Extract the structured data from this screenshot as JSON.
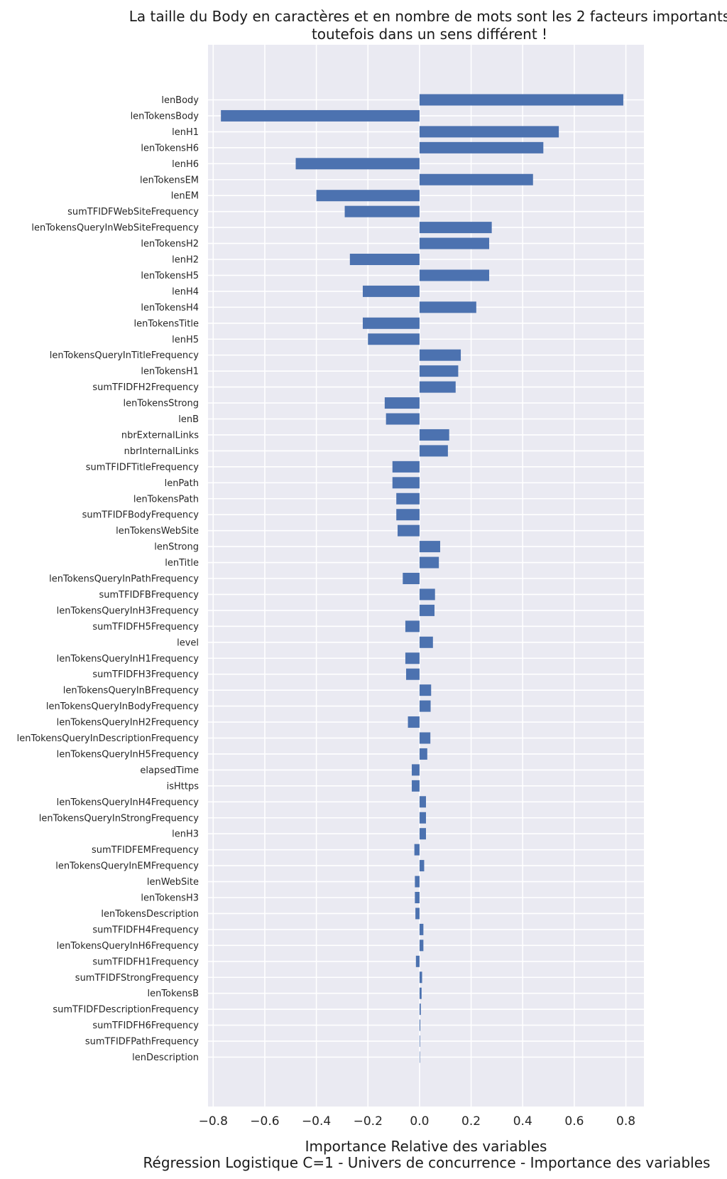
{
  "chart_data": {
    "type": "bar",
    "orientation": "horizontal",
    "title": "La taille du Body en caractères et en nombre de mots sont les 2 facteurs importants toutefois dans un sens différent !",
    "title_lines": [
      "La taille du Body en caractères et en nombre de mots sont les 2 facteurs importants",
      "toutefois dans un sens différent !"
    ],
    "xlabel": "Importance Relative des variables",
    "subtitle": "Régression Logistique C=1 - Univers de concurrence - Importance des variables",
    "xlim": [
      -0.82,
      0.87
    ],
    "xticks": [
      -0.8,
      -0.6,
      -0.4,
      -0.2,
      0.0,
      0.2,
      0.4,
      0.6,
      0.8
    ],
    "xtick_labels": [
      "−0.8",
      "−0.6",
      "−0.4",
      "−0.2",
      "0.0",
      "0.2",
      "0.4",
      "0.6",
      "0.8"
    ],
    "grid": true,
    "bar_color": "#4c72b0",
    "background": "#eaeaf2",
    "categories": [
      "lenBody",
      "lenTokensBody",
      "lenH1",
      "lenTokensH6",
      "lenH6",
      "lenTokensEM",
      "lenEM",
      "sumTFIDFWebSiteFrequency",
      "lenTokensQueryInWebSiteFrequency",
      "lenTokensH2",
      "lenH2",
      "lenTokensH5",
      "lenH4",
      "lenTokensH4",
      "lenTokensTitle",
      "lenH5",
      "lenTokensQueryInTitleFrequency",
      "lenTokensH1",
      "sumTFIDFH2Frequency",
      "lenTokensStrong",
      "lenB",
      "nbrExternalLinks",
      "nbrInternalLinks",
      "sumTFIDFTitleFrequency",
      "lenPath",
      "lenTokensPath",
      "sumTFIDFBodyFrequency",
      "lenTokensWebSite",
      "lenStrong",
      "lenTitle",
      "lenTokensQueryInPathFrequency",
      "sumTFIDFBFrequency",
      "lenTokensQueryInH3Frequency",
      "sumTFIDFH5Frequency",
      "level",
      "lenTokensQueryInH1Frequency",
      "sumTFIDFH3Frequency",
      "lenTokensQueryInBFrequency",
      "lenTokensQueryInBodyFrequency",
      "lenTokensQueryInH2Frequency",
      "lenTokensQueryInDescriptionFrequency",
      "lenTokensQueryInH5Frequency",
      "elapsedTime",
      "isHttps",
      "lenTokensQueryInH4Frequency",
      "lenTokensQueryInStrongFrequency",
      "lenH3",
      "sumTFIDFEMFrequency",
      "lenTokensQueryInEMFrequency",
      "lenWebSite",
      "lenTokensH3",
      "lenTokensDescription",
      "sumTFIDFH4Frequency",
      "lenTokensQueryInH6Frequency",
      "sumTFIDFH1Frequency",
      "sumTFIDFStrongFrequency",
      "lenTokensB",
      "sumTFIDFDescriptionFrequency",
      "sumTFIDFH6Frequency",
      "sumTFIDFPathFrequency",
      "lenDescription"
    ],
    "values": [
      0.79,
      -0.77,
      0.54,
      0.48,
      -0.48,
      0.44,
      -0.4,
      -0.29,
      0.28,
      0.27,
      -0.27,
      0.27,
      -0.22,
      0.22,
      -0.22,
      -0.2,
      0.16,
      0.15,
      0.14,
      -0.135,
      -0.13,
      0.115,
      0.11,
      -0.105,
      -0.105,
      -0.09,
      -0.09,
      -0.085,
      0.08,
      0.075,
      -0.065,
      0.06,
      0.058,
      -0.055,
      0.052,
      -0.055,
      -0.052,
      0.045,
      0.043,
      -0.045,
      0.042,
      0.03,
      -0.03,
      -0.03,
      0.025,
      0.025,
      0.025,
      -0.02,
      0.018,
      -0.018,
      -0.018,
      -0.016,
      0.015,
      0.015,
      -0.014,
      0.01,
      0.008,
      0.005,
      0.003,
      0.002,
      0.001
    ]
  }
}
